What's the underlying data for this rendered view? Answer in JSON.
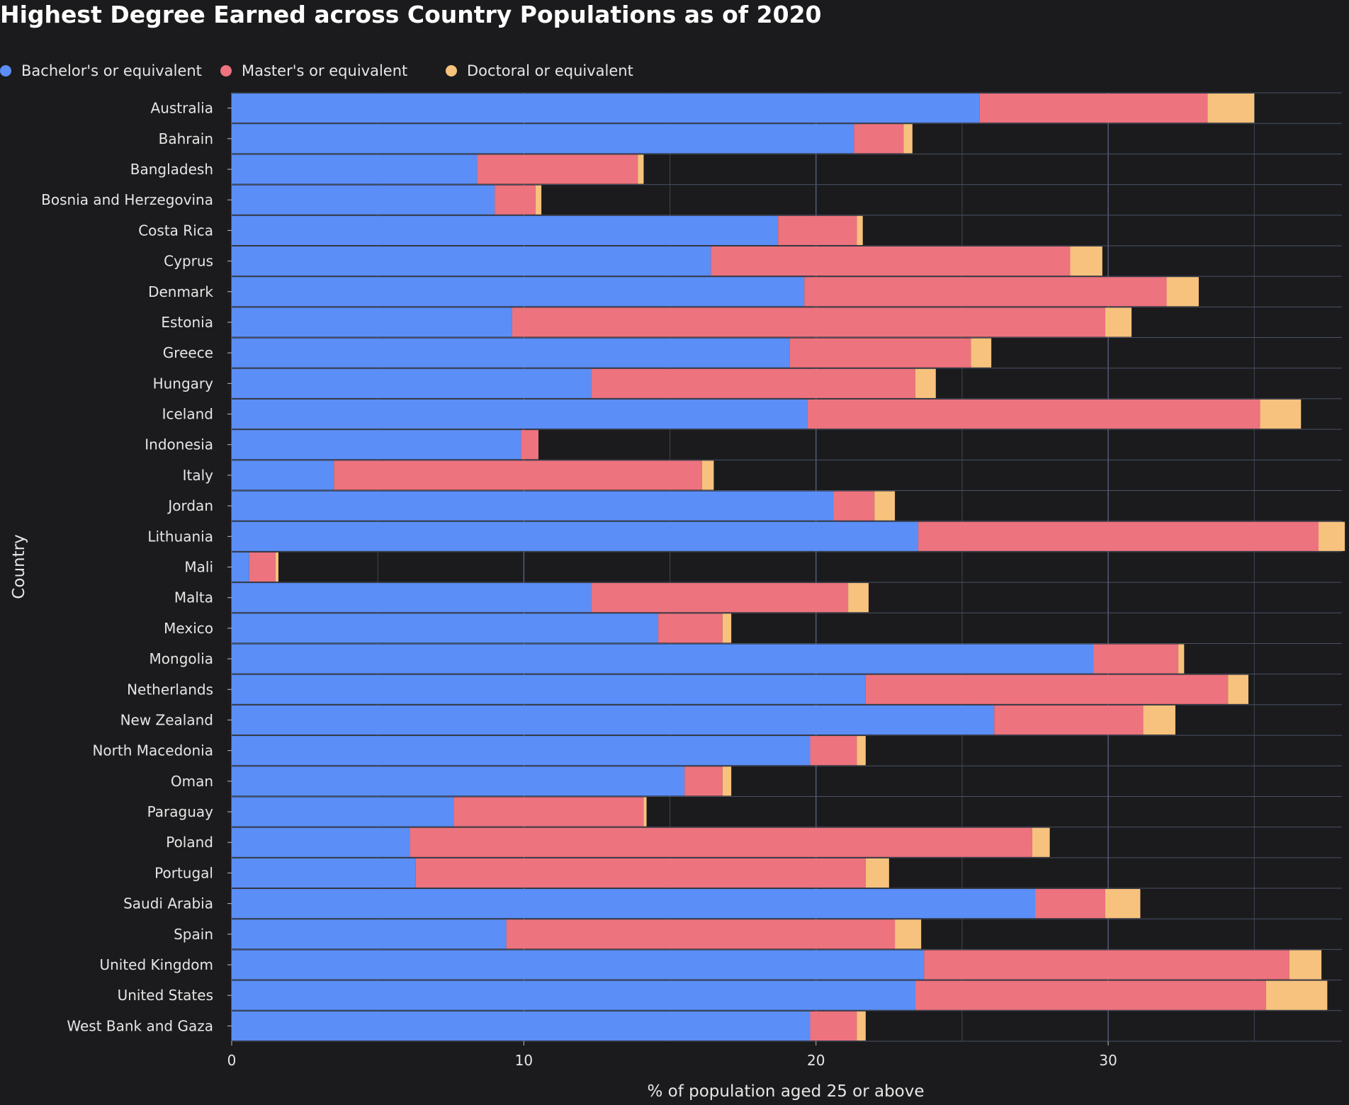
{
  "chart_data": {
    "type": "bar",
    "orientation": "horizontal",
    "stacked": true,
    "title": "Highest Degree Earned across Country Populations as of 2020",
    "xlabel": "% of population aged 25 or above",
    "ylabel": "Country",
    "xlim": [
      0,
      38
    ],
    "xticks": [
      0,
      10,
      20,
      30
    ],
    "grid": true,
    "legend_position": "top-left",
    "colors": [
      "#5b8ef7",
      "#ed737e",
      "#f7c27d"
    ],
    "categories": [
      "Australia",
      "Bahrain",
      "Bangladesh",
      "Bosnia and Herzegovina",
      "Costa Rica",
      "Cyprus",
      "Denmark",
      "Estonia",
      "Greece",
      "Hungary",
      "Iceland",
      "Indonesia",
      "Italy",
      "Jordan",
      "Lithuania",
      "Mali",
      "Malta",
      "Mexico",
      "Mongolia",
      "Netherlands",
      "New Zealand",
      "North Macedonia",
      "Oman",
      "Paraguay",
      "Poland",
      "Portugal",
      "Saudi Arabia",
      "Spain",
      "United Kingdom",
      "United States",
      "West Bank and Gaza"
    ],
    "series": [
      {
        "name": "Bachelor's or equivalent",
        "values": [
          25.6,
          21.3,
          8.4,
          9.0,
          18.7,
          16.4,
          19.6,
          9.6,
          19.1,
          12.3,
          19.7,
          9.9,
          3.5,
          20.6,
          23.5,
          0.6,
          12.3,
          14.6,
          29.5,
          21.7,
          26.1,
          19.8,
          15.5,
          7.6,
          6.1,
          6.3,
          27.5,
          9.4,
          23.7,
          23.4,
          19.8
        ]
      },
      {
        "name": "Master's or equivalent",
        "values": [
          7.8,
          1.7,
          5.5,
          1.4,
          2.7,
          12.3,
          12.4,
          20.3,
          6.2,
          11.1,
          15.5,
          0.6,
          12.6,
          1.4,
          13.7,
          0.9,
          8.8,
          2.2,
          2.9,
          12.4,
          5.1,
          1.6,
          1.3,
          6.5,
          21.3,
          15.4,
          2.4,
          13.3,
          12.5,
          12.0,
          1.6
        ]
      },
      {
        "name": "Doctoral or equivalent",
        "values": [
          1.6,
          0.3,
          0.2,
          0.2,
          0.2,
          1.1,
          1.1,
          0.9,
          0.7,
          0.7,
          1.4,
          0.0,
          0.4,
          0.7,
          0.9,
          0.1,
          0.7,
          0.3,
          0.2,
          0.7,
          1.1,
          0.3,
          0.3,
          0.1,
          0.6,
          0.8,
          1.2,
          0.9,
          1.1,
          2.1,
          0.3
        ]
      }
    ]
  }
}
